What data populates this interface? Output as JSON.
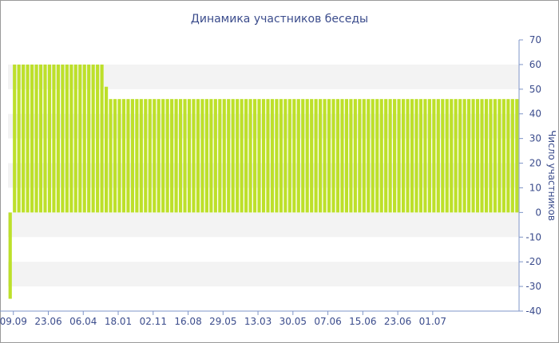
{
  "chart_data": {
    "type": "bar",
    "title": "Динамика участников беседы",
    "xlabel": "",
    "ylabel": "Число участников",
    "ylim": [
      -40,
      70
    ],
    "y_ticks": [
      70,
      60,
      50,
      40,
      30,
      20,
      10,
      0,
      -10,
      -20,
      -30,
      -40
    ],
    "x_tick_labels": [
      "09.09",
      "23.06",
      "06.04",
      "18.01",
      "02.11",
      "16.08",
      "29.05",
      "13.03",
      "30.05",
      "07.06",
      "15.06",
      "23.06",
      "01.07"
    ],
    "grid": "horizontal bands",
    "bar_color": "#bde02a",
    "bars": {
      "count": 117,
      "first_value": -35,
      "values_2_to_22": 60,
      "value_23": 51,
      "values_24_to_117": 46
    }
  }
}
